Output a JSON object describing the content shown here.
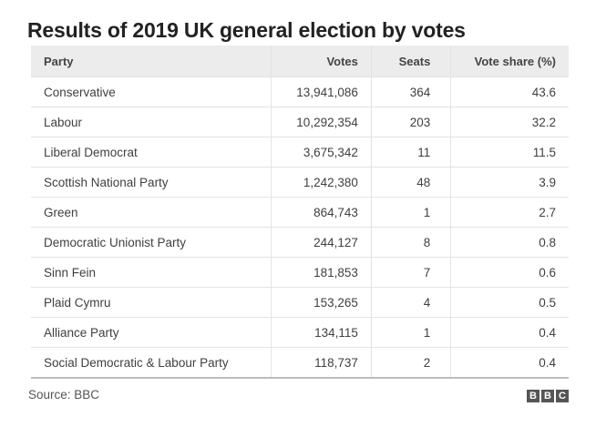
{
  "title": "Results of 2019 UK general election by votes",
  "source": "Source: BBC",
  "logo_letters": [
    "B",
    "B",
    "C"
  ],
  "chart_data": {
    "type": "table",
    "title": "Results of 2019 UK general election by votes",
    "columns": [
      "Party",
      "Votes",
      "Seats",
      "Vote share (%)"
    ],
    "rows": [
      [
        "Conservative",
        "13,941,086",
        "364",
        "43.6"
      ],
      [
        "Labour",
        "10,292,354",
        "203",
        "32.2"
      ],
      [
        "Liberal Democrat",
        "3,675,342",
        "11",
        "11.5"
      ],
      [
        "Scottish National Party",
        "1,242,380",
        "48",
        "3.9"
      ],
      [
        "Green",
        "864,743",
        "1",
        "2.7"
      ],
      [
        "Democratic Unionist Party",
        "244,127",
        "8",
        "0.8"
      ],
      [
        "Sinn Fein",
        "181,853",
        "7",
        "0.6"
      ],
      [
        "Plaid Cymru",
        "153,265",
        "4",
        "0.5"
      ],
      [
        "Alliance Party",
        "134,115",
        "1",
        "0.4"
      ],
      [
        "Social Democratic & Labour Party",
        "118,737",
        "2",
        "0.4"
      ]
    ]
  }
}
